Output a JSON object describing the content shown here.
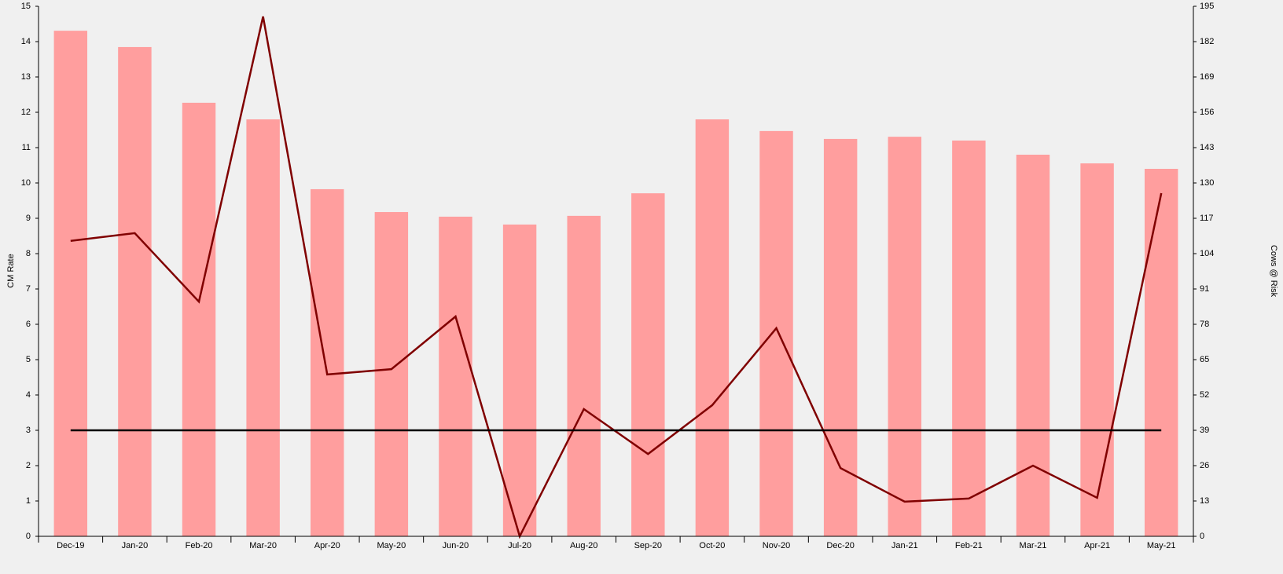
{
  "chart_data": {
    "type": "bar",
    "y_label": "CM Rate",
    "y2_label": "Cows @ Risk",
    "categories": [
      "Dec-19",
      "Jan-20",
      "Feb-20",
      "Mar-20",
      "Apr-20",
      "May-20",
      "Jun-20",
      "Jul-20",
      "Aug-20",
      "Sep-20",
      "Oct-20",
      "Nov-20",
      "Dec-20",
      "Jan-21",
      "Feb-21",
      "Mar-21",
      "Apr-21",
      "May-21"
    ],
    "series": [
      {
        "type": "bar",
        "axis": "y2",
        "color": "#ff9e9e",
        "values": [
          186,
          180,
          159.5,
          153.4,
          127.7,
          119.3,
          117.6,
          114.7,
          117.9,
          126.2,
          153.4,
          149.1,
          146.2,
          147,
          145.6,
          140.4,
          137.2,
          135.2
        ]
      },
      {
        "type": "line",
        "axis": "y",
        "color": "#800000",
        "values": [
          8.36,
          8.58,
          6.64,
          14.71,
          4.58,
          4.73,
          6.22,
          0,
          3.6,
          2.33,
          3.71,
          5.89,
          1.93,
          0.98,
          1.07,
          2.0,
          1.09,
          9.71
        ]
      },
      {
        "type": "line",
        "axis": "y",
        "color": "#000000",
        "values": [
          3,
          3,
          3,
          3,
          3,
          3,
          3,
          3,
          3,
          3,
          3,
          3,
          3,
          3,
          3,
          3,
          3,
          3
        ]
      }
    ],
    "ylim": [
      0,
      15
    ],
    "yticks": [
      0,
      1,
      2,
      3,
      4,
      5,
      6,
      7,
      8,
      9,
      10,
      11,
      12,
      13,
      14,
      15
    ],
    "y2lim": [
      0,
      195
    ],
    "y2ticks": [
      0,
      13,
      26,
      39,
      52,
      65,
      78,
      91,
      104,
      117,
      130,
      143,
      156,
      169,
      182,
      195
    ]
  }
}
